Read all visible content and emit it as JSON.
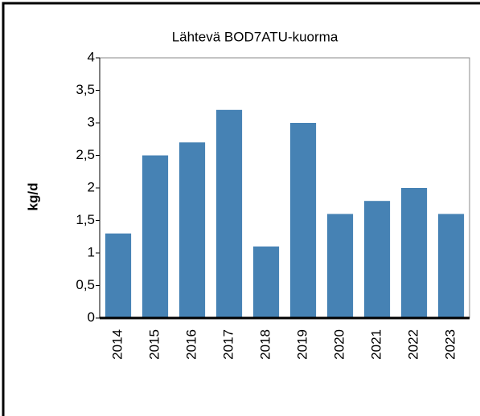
{
  "chart_data": {
    "type": "bar",
    "title": "Lähtevä BOD7ATU-kuorma",
    "y_label": "kg/d",
    "categories": [
      "2014",
      "2015",
      "2016",
      "2017",
      "2018",
      "2019",
      "2020",
      "2021",
      "2022",
      "2023"
    ],
    "values": [
      1.3,
      2.5,
      2.7,
      3.2,
      1.1,
      3.0,
      1.6,
      1.8,
      2.0,
      1.6
    ],
    "color": "#4682b4",
    "ylim": [
      0,
      4
    ],
    "yticks": [
      0,
      {
        "value": 0.5,
        "label": "0,5"
      },
      1,
      {
        "value": 1.5,
        "label": "1,5"
      },
      2,
      {
        "value": 2.5,
        "label": "2,5"
      },
      3,
      {
        "value": 3.5,
        "label": "3,5"
      },
      4
    ]
  }
}
